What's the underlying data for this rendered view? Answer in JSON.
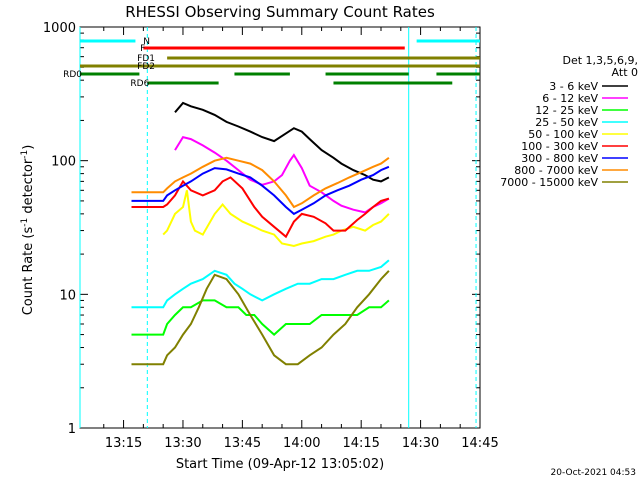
{
  "chart_data": {
    "type": "line",
    "title": "RHESSI Observing Summary Count Rates",
    "xlabel": "Start Time (09-Apr-12 13:05:02)",
    "ylabel_main": "Count Rate (s",
    "ylabel_sup1": "-1",
    "ylabel_mid": " detector",
    "ylabel_sup2": "-1",
    "ylabel_end": ")",
    "yscale": "log",
    "ylim": [
      1,
      1000
    ],
    "xlim_min": [
      784,
      885
    ],
    "x_ticks": [
      {
        "m": 795,
        "label": "13:15"
      },
      {
        "m": 810,
        "label": "13:30"
      },
      {
        "m": 825,
        "label": "13:45"
      },
      {
        "m": 840,
        "label": "14:00"
      },
      {
        "m": 855,
        "label": "14:15"
      },
      {
        "m": 870,
        "label": "14:30"
      },
      {
        "m": 885,
        "label": "14:45"
      }
    ],
    "y_ticks": [
      {
        "v": 1,
        "label": "1"
      },
      {
        "v": 10,
        "label": "10"
      },
      {
        "v": 100,
        "label": "100"
      },
      {
        "v": 1000,
        "label": "1000"
      }
    ],
    "legend_header": [
      "Det 1,3,5,6,9,",
      "Att 0"
    ],
    "series": [
      {
        "name": "3 - 6 keV",
        "color": "#000000",
        "x": [
          808,
          810,
          812,
          815,
          818,
          821,
          824,
          827,
          830,
          833,
          836,
          838,
          840,
          842,
          845,
          848,
          850,
          853,
          856,
          858,
          860,
          862
        ],
        "y": [
          230,
          270,
          255,
          240,
          220,
          195,
          180,
          165,
          150,
          140,
          160,
          175,
          165,
          145,
          120,
          105,
          95,
          85,
          78,
          72,
          70,
          75
        ]
      },
      {
        "name": "6 - 12 keV",
        "color": "#ff00ff",
        "x": [
          808,
          810,
          812,
          815,
          818,
          821,
          824,
          827,
          830,
          833,
          835,
          837,
          838,
          840,
          842,
          845,
          848,
          850,
          853,
          856,
          858,
          860,
          862
        ],
        "y": [
          120,
          150,
          145,
          130,
          115,
          100,
          85,
          72,
          66,
          70,
          78,
          100,
          110,
          88,
          65,
          58,
          50,
          46,
          43,
          41,
          45,
          48,
          52
        ]
      },
      {
        "name": "12 - 25 keV",
        "color": "#00ff00",
        "x": [
          797,
          805,
          806,
          808,
          810,
          812,
          815,
          818,
          821,
          824,
          826,
          828,
          830,
          833,
          836,
          839,
          842,
          845,
          848,
          851,
          854,
          857,
          860,
          862
        ],
        "y": [
          5,
          5,
          6,
          7,
          8,
          8,
          9,
          9,
          8,
          8,
          7,
          7,
          6,
          5,
          6,
          6,
          6,
          7,
          7,
          7,
          7,
          8,
          8,
          9
        ]
      },
      {
        "name": "25 - 50 keV",
        "color": "#00ffff",
        "x": [
          797,
          805,
          806,
          808,
          810,
          812,
          815,
          818,
          821,
          823,
          825,
          827,
          830,
          833,
          836,
          839,
          842,
          845,
          848,
          851,
          854,
          857,
          860,
          862
        ],
        "y": [
          8,
          8,
          9,
          10,
          11,
          12,
          13,
          15,
          14,
          12,
          11,
          10,
          9,
          10,
          11,
          12,
          12,
          13,
          13,
          14,
          15,
          15,
          16,
          18
        ]
      },
      {
        "name": "50 - 100 keV",
        "color": "#ffff00",
        "x": [
          805,
          806,
          808,
          810,
          811,
          812,
          813,
          815,
          818,
          820,
          822,
          825,
          828,
          830,
          833,
          835,
          838,
          840,
          843,
          846,
          848,
          850,
          853,
          856,
          858,
          860,
          862
        ],
        "y": [
          28,
          30,
          40,
          45,
          60,
          35,
          30,
          28,
          40,
          47,
          40,
          35,
          32,
          30,
          28,
          24,
          23,
          24,
          25,
          27,
          28,
          30,
          32,
          30,
          33,
          35,
          40
        ]
      },
      {
        "name": "100 - 300 keV",
        "color": "#ff0000",
        "x": [
          797,
          805,
          806,
          808,
          810,
          812,
          815,
          818,
          820,
          822,
          825,
          828,
          830,
          833,
          836,
          838,
          840,
          843,
          846,
          848,
          851,
          854,
          856,
          858,
          860,
          862
        ],
        "y": [
          45,
          45,
          47,
          55,
          70,
          60,
          55,
          60,
          70,
          75,
          62,
          45,
          38,
          32,
          27,
          35,
          40,
          38,
          34,
          30,
          30,
          36,
          40,
          45,
          50,
          52
        ]
      },
      {
        "name": "300 - 800 keV",
        "color": "#0000ff",
        "x": [
          797,
          805,
          806,
          808,
          810,
          812,
          815,
          818,
          821,
          824,
          827,
          830,
          833,
          836,
          838,
          840,
          843,
          846,
          849,
          852,
          855,
          858,
          860,
          862
        ],
        "y": [
          50,
          50,
          55,
          60,
          65,
          70,
          80,
          88,
          86,
          80,
          75,
          65,
          55,
          45,
          40,
          43,
          48,
          55,
          60,
          65,
          72,
          78,
          85,
          90
        ]
      },
      {
        "name": "800 - 7000 keV",
        "color": "#ff8c00",
        "x": [
          797,
          805,
          806,
          808,
          810,
          812,
          815,
          818,
          821,
          824,
          827,
          830,
          833,
          836,
          838,
          840,
          843,
          846,
          849,
          852,
          855,
          858,
          860,
          862
        ],
        "y": [
          58,
          58,
          62,
          70,
          75,
          80,
          90,
          100,
          105,
          100,
          95,
          85,
          70,
          55,
          45,
          48,
          55,
          62,
          68,
          75,
          82,
          90,
          95,
          105
        ]
      },
      {
        "name": "7000 - 15000 keV",
        "color": "#808000",
        "x": [
          797,
          805,
          806,
          808,
          810,
          812,
          814,
          816,
          818,
          821,
          824,
          827,
          830,
          833,
          836,
          839,
          842,
          845,
          848,
          851,
          854,
          857,
          860,
          862
        ],
        "y": [
          3,
          3,
          3.5,
          4,
          5,
          6,
          8,
          11,
          14,
          13,
          10,
          7,
          5,
          3.5,
          3,
          3,
          3.5,
          4,
          5,
          6,
          8,
          10,
          13,
          15
        ]
      }
    ],
    "state_bars": [
      {
        "label": "N",
        "color": "#00ffff",
        "y": 41,
        "segments": [
          [
            784,
            798
          ],
          [
            869,
            885
          ]
        ]
      },
      {
        "label": "F",
        "color": "#ff0000",
        "y": 48,
        "segments": [
          [
            800,
            866
          ]
        ]
      },
      {
        "label": "FD1",
        "color": "#808000",
        "y": 58,
        "segments": [
          [
            806,
            885
          ]
        ]
      },
      {
        "label": "FD2",
        "color": "#808000",
        "y": 66,
        "segments": [
          [
            784,
            885
          ]
        ]
      },
      {
        "label": "RD0",
        "color": "#008000",
        "y": 74,
        "segments": [
          [
            784,
            799
          ],
          [
            823,
            837
          ],
          [
            846,
            867
          ],
          [
            874,
            885
          ]
        ]
      },
      {
        "label": "RD6",
        "color": "#008000",
        "y": 83,
        "segments": [
          [
            801,
            819
          ],
          [
            848,
            878
          ]
        ]
      }
    ],
    "saa_lines": [
      {
        "m": 784,
        "color": "#00ffff",
        "style": "solid"
      },
      {
        "m": 801,
        "color": "#00ffff",
        "style": "dashed"
      },
      {
        "m": 867,
        "color": "#00ffff",
        "style": "solid"
      },
      {
        "m": 884,
        "color": "#00ffff",
        "style": "dashed"
      }
    ],
    "timestamp": "20-Oct-2021 04:53"
  }
}
